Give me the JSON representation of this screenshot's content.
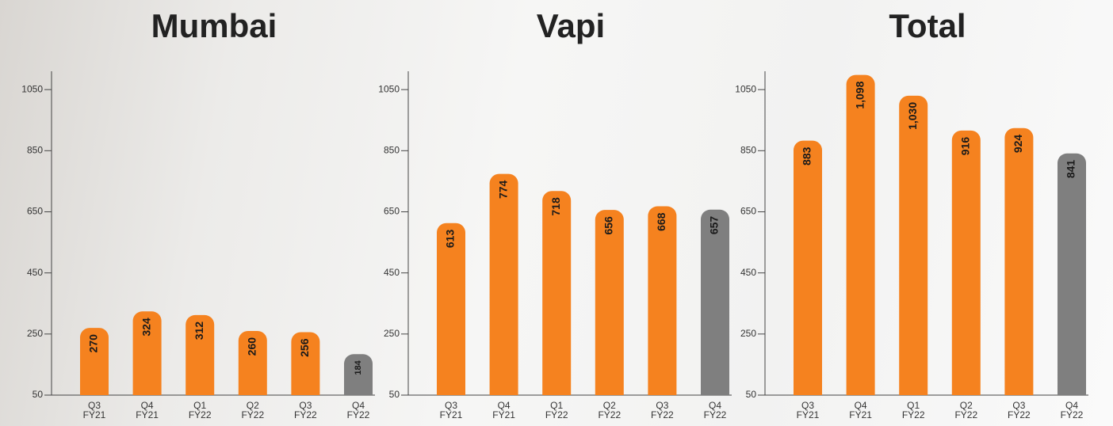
{
  "chart_data": [
    {
      "type": "bar",
      "title": "Mumbai",
      "categories": [
        "Q3 FY21",
        "Q4 FY21",
        "Q1 FY22",
        "Q2 FY22",
        "Q3 FY22",
        "Q4 FY22"
      ],
      "values": [
        270,
        324,
        312,
        260,
        256,
        184
      ],
      "colors": [
        "#f5821f",
        "#f5821f",
        "#f5821f",
        "#f5821f",
        "#f5821f",
        "#7f7f7f"
      ],
      "ylim": [
        50,
        1110
      ],
      "yticks": [
        50,
        250,
        450,
        650,
        850,
        1050
      ]
    },
    {
      "type": "bar",
      "title": "Vapi",
      "categories": [
        "Q3 FY21",
        "Q4 FY21",
        "Q1 FY22",
        "Q2 FY22",
        "Q3 FY22",
        "Q4 FY22"
      ],
      "values": [
        613,
        774,
        718,
        656,
        668,
        657
      ],
      "colors": [
        "#f5821f",
        "#f5821f",
        "#f5821f",
        "#f5821f",
        "#f5821f",
        "#7f7f7f"
      ],
      "ylim": [
        50,
        1110
      ],
      "yticks": [
        50,
        250,
        450,
        650,
        850,
        1050
      ]
    },
    {
      "type": "bar",
      "title": "Total",
      "categories": [
        "Q3 FY21",
        "Q4 FY21",
        "Q1 FY22",
        "Q2 FY22",
        "Q3 FY22",
        "Q4 FY22"
      ],
      "values": [
        883,
        1098,
        1030,
        916,
        924,
        841
      ],
      "value_labels": [
        "883",
        "1,098",
        "1,030",
        "916",
        "924",
        "841"
      ],
      "colors": [
        "#f5821f",
        "#f5821f",
        "#f5821f",
        "#f5821f",
        "#f5821f",
        "#7f7f7f"
      ],
      "ylim": [
        50,
        1110
      ],
      "yticks": [
        50,
        250,
        450,
        650,
        850,
        1050
      ]
    }
  ]
}
